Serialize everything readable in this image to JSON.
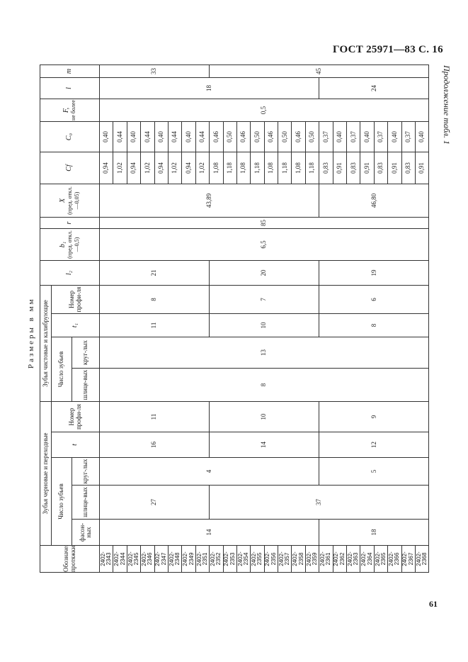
{
  "page": {
    "header": "ГОСТ 25971—83 С. 16",
    "continuation": "Продолжение табл. 1",
    "units": "Размеры в мм",
    "page_number": "61"
  },
  "table": {
    "headers": {
      "designation": "Обозначение протяжки",
      "rough_group": "Зубья черновые и переходные",
      "finish_group": "Зубья чистовые и калибрующие",
      "teeth_count": "Число зубьев",
      "shaped": "фасон-ных",
      "spline": "шлице-вых",
      "round": "круг-лых",
      "t": "t",
      "profile_no": "Номер профи-ля",
      "t1": "t₁",
      "t2": "l₂",
      "b1_sym": "b₁",
      "b1_note": "(пред. откл. —0,5)",
      "r": "r",
      "x_sym": "X",
      "x_note": "(пред. откл. —0,05)",
      "cf": "Cf",
      "c0": "C₀",
      "f_sym": "F,",
      "f_note": "не более",
      "l": "l",
      "m": "m"
    },
    "designations": [
      "2402-2343",
      "2402-2344",
      "2402-2345",
      "2402-2346",
      "2402-2347",
      "2402-2348",
      "2402-2349",
      "2402-2351",
      "2402-2352",
      "2402-2353",
      "2402-2354",
      "2402-2355",
      "2402-2356",
      "2402-2357",
      "2402-2358",
      "2402-2359",
      "2402-2361",
      "2402-2362",
      "2402-2363",
      "2402-2364",
      "2402-2365",
      "2402-2366",
      "2402-2367",
      "2402-2368"
    ],
    "columns": [
      {
        "key": "rough_shaped",
        "groups": [
          {
            "value": "14",
            "rows": 16
          },
          {
            "value": "18",
            "rows": 8
          }
        ]
      },
      {
        "key": "rough_spline",
        "groups": [
          {
            "value": "27",
            "rows": 8
          },
          {
            "value": "37",
            "rows": 16
          }
        ]
      },
      {
        "key": "rough_round",
        "groups": [
          {
            "value": "4",
            "rows": 16
          },
          {
            "value": "5",
            "rows": 8
          }
        ]
      },
      {
        "key": "rough_t",
        "groups": [
          {
            "value": "16",
            "rows": 8
          },
          {
            "value": "14",
            "rows": 8
          },
          {
            "value": "12",
            "rows": 8
          }
        ]
      },
      {
        "key": "rough_profile",
        "groups": [
          {
            "value": "11",
            "rows": 8
          },
          {
            "value": "10",
            "rows": 8
          },
          {
            "value": "9",
            "rows": 8
          }
        ]
      },
      {
        "key": "finish_spline",
        "groups": [
          {
            "value": "8",
            "rows": 24
          }
        ]
      },
      {
        "key": "finish_round",
        "groups": [
          {
            "value": "13",
            "rows": 24
          }
        ]
      },
      {
        "key": "finish_t1",
        "groups": [
          {
            "value": "11",
            "rows": 8
          },
          {
            "value": "10",
            "rows": 8
          },
          {
            "value": "8",
            "rows": 8
          }
        ]
      },
      {
        "key": "finish_profile",
        "groups": [
          {
            "value": "8",
            "rows": 8
          },
          {
            "value": "7",
            "rows": 8
          },
          {
            "value": "6",
            "rows": 8
          }
        ]
      },
      {
        "key": "l2",
        "groups": [
          {
            "value": "21",
            "rows": 8
          },
          {
            "value": "20",
            "rows": 8
          },
          {
            "value": "19",
            "rows": 8
          }
        ]
      },
      {
        "key": "b1",
        "groups": [
          {
            "value": "6,5",
            "rows": 24
          }
        ]
      },
      {
        "key": "r",
        "groups": [
          {
            "value": "85",
            "rows": 24
          }
        ]
      },
      {
        "key": "x",
        "groups": [
          {
            "value": "43,89",
            "rows": 16
          },
          {
            "value": "46,80",
            "rows": 8
          }
        ]
      },
      {
        "key": "cf",
        "groups": [
          {
            "value": "0,94",
            "rows": 1
          },
          {
            "value": "1,02",
            "rows": 1
          },
          {
            "value": "0,94",
            "rows": 1
          },
          {
            "value": "1,02",
            "rows": 1
          },
          {
            "value": "0,94",
            "rows": 1
          },
          {
            "value": "1,02",
            "rows": 1
          },
          {
            "value": "0,94",
            "rows": 1
          },
          {
            "value": "1,02",
            "rows": 1
          },
          {
            "value": "1,08",
            "rows": 1
          },
          {
            "value": "1,18",
            "rows": 1
          },
          {
            "value": "1,08",
            "rows": 1
          },
          {
            "value": "1,18",
            "rows": 1
          },
          {
            "value": "1,08",
            "rows": 1
          },
          {
            "value": "1,18",
            "rows": 1
          },
          {
            "value": "1,08",
            "rows": 1
          },
          {
            "value": "1,18",
            "rows": 1
          },
          {
            "value": "0,83",
            "rows": 1
          },
          {
            "value": "0,91",
            "rows": 1
          },
          {
            "value": "0,83",
            "rows": 1
          },
          {
            "value": "0,91",
            "rows": 1
          },
          {
            "value": "0,83",
            "rows": 1
          },
          {
            "value": "0,91",
            "rows": 1
          },
          {
            "value": "0,83",
            "rows": 1
          },
          {
            "value": "0,91",
            "rows": 1
          }
        ]
      },
      {
        "key": "c0",
        "groups": [
          {
            "value": "0,40",
            "rows": 1
          },
          {
            "value": "0,44",
            "rows": 1
          },
          {
            "value": "0,40",
            "rows": 1
          },
          {
            "value": "0,44",
            "rows": 1
          },
          {
            "value": "0,40",
            "rows": 1
          },
          {
            "value": "0,44",
            "rows": 1
          },
          {
            "value": "0,40",
            "rows": 1
          },
          {
            "value": "0,44",
            "rows": 1
          },
          {
            "value": "0,46",
            "rows": 1
          },
          {
            "value": "0,50",
            "rows": 1
          },
          {
            "value": "0,46",
            "rows": 1
          },
          {
            "value": "0,50",
            "rows": 1
          },
          {
            "value": "0,46",
            "rows": 1
          },
          {
            "value": "0,50",
            "rows": 1
          },
          {
            "value": "0,46",
            "rows": 1
          },
          {
            "value": "0,50",
            "rows": 1
          },
          {
            "value": "0,37",
            "rows": 1
          },
          {
            "value": "0,40",
            "rows": 1
          },
          {
            "value": "0,37",
            "rows": 1
          },
          {
            "value": "0,40",
            "rows": 1
          },
          {
            "value": "0,37",
            "rows": 1
          },
          {
            "value": "0,40",
            "rows": 1
          },
          {
            "value": "0,37",
            "rows": 1
          },
          {
            "value": "0,40",
            "rows": 1
          }
        ]
      },
      {
        "key": "f",
        "groups": [
          {
            "value": "0,5",
            "rows": 24
          }
        ]
      },
      {
        "key": "l",
        "groups": [
          {
            "value": "18",
            "rows": 16
          },
          {
            "value": "24",
            "rows": 8
          }
        ]
      },
      {
        "key": "m",
        "groups": [
          {
            "value": "33",
            "rows": 8
          },
          {
            "value": "45",
            "rows": 16
          }
        ]
      }
    ]
  }
}
